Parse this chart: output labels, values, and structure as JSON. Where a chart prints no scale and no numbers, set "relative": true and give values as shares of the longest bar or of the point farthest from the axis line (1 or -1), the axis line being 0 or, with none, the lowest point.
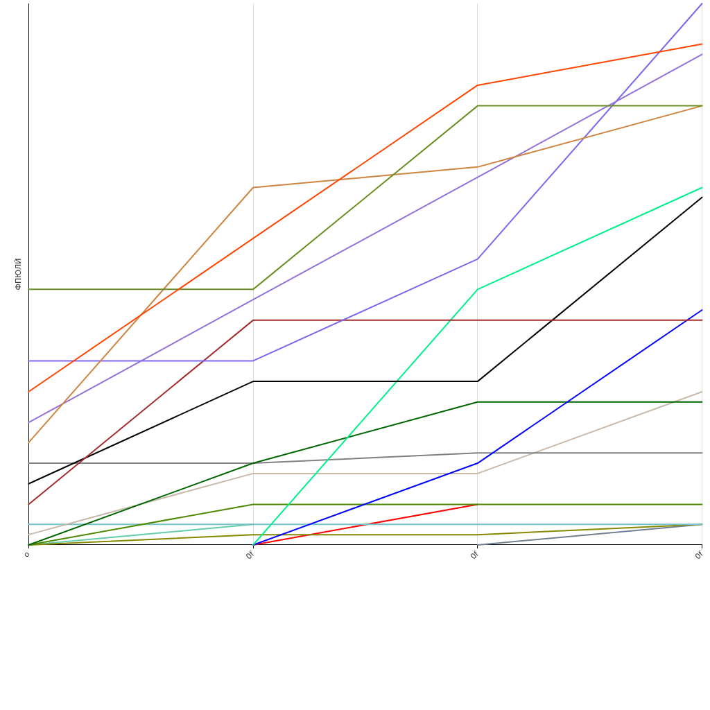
{
  "chart_data": {
    "type": "line",
    "ylabel": "ФПЮЛЙ",
    "relative": true,
    "categories": [
      "o",
      "0f",
      "0f",
      "0f"
    ],
    "series": [
      {
        "color": "#66cdaa",
        "values": [
          0,
          0.038,
          null,
          null
        ]
      },
      {
        "color": "#ff0000",
        "values": [
          null,
          0,
          0.075,
          null
        ]
      },
      {
        "color": "#708090",
        "values": [
          null,
          null,
          0,
          0.038
        ]
      },
      {
        "color": "#888800",
        "values": [
          0,
          0.019,
          0.019,
          0.038
        ]
      },
      {
        "color": "#72c2c8",
        "values": [
          0.038,
          0.038,
          0.038,
          0.038
        ]
      },
      {
        "color": "#4e8a00",
        "values": [
          0,
          0.075,
          0.075,
          0.075
        ]
      },
      {
        "color": "#c8b9aa",
        "values": [
          0.019,
          0.132,
          0.132,
          0.283
        ]
      },
      {
        "color": "#808080",
        "values": [
          0.151,
          0.151,
          0.17,
          0.17
        ]
      },
      {
        "color": "#006400",
        "values": [
          0,
          0.151,
          0.264,
          0.264
        ]
      },
      {
        "color": "#0000ff",
        "values": [
          null,
          0,
          0.151,
          0.434
        ]
      },
      {
        "color": "#00f08c",
        "values": [
          null,
          0,
          0.472,
          0.66
        ]
      },
      {
        "color": "#000000",
        "values": [
          0.113,
          0.302,
          0.302,
          0.642
        ]
      },
      {
        "color": "#a52a2a",
        "values": [
          0.075,
          0.415,
          0.415,
          0.415
        ]
      },
      {
        "color": "#7b68ee",
        "values": [
          0.34,
          0.34,
          0.528,
          1
        ]
      },
      {
        "color": "#9370db",
        "values": [
          0.226,
          0.453,
          0.679,
          0.906
        ]
      },
      {
        "color": "#cd853f",
        "values": [
          0.189,
          0.66,
          0.698,
          0.811
        ]
      },
      {
        "color": "#6b8e23",
        "values": [
          0.472,
          0.472,
          0.811,
          0.811
        ]
      },
      {
        "color": "#ff4500",
        "values": [
          0.283,
          0.566,
          0.849,
          0.925
        ]
      }
    ],
    "grid": "x",
    "legend": false,
    "marker": "none",
    "line_style": "solid"
  }
}
